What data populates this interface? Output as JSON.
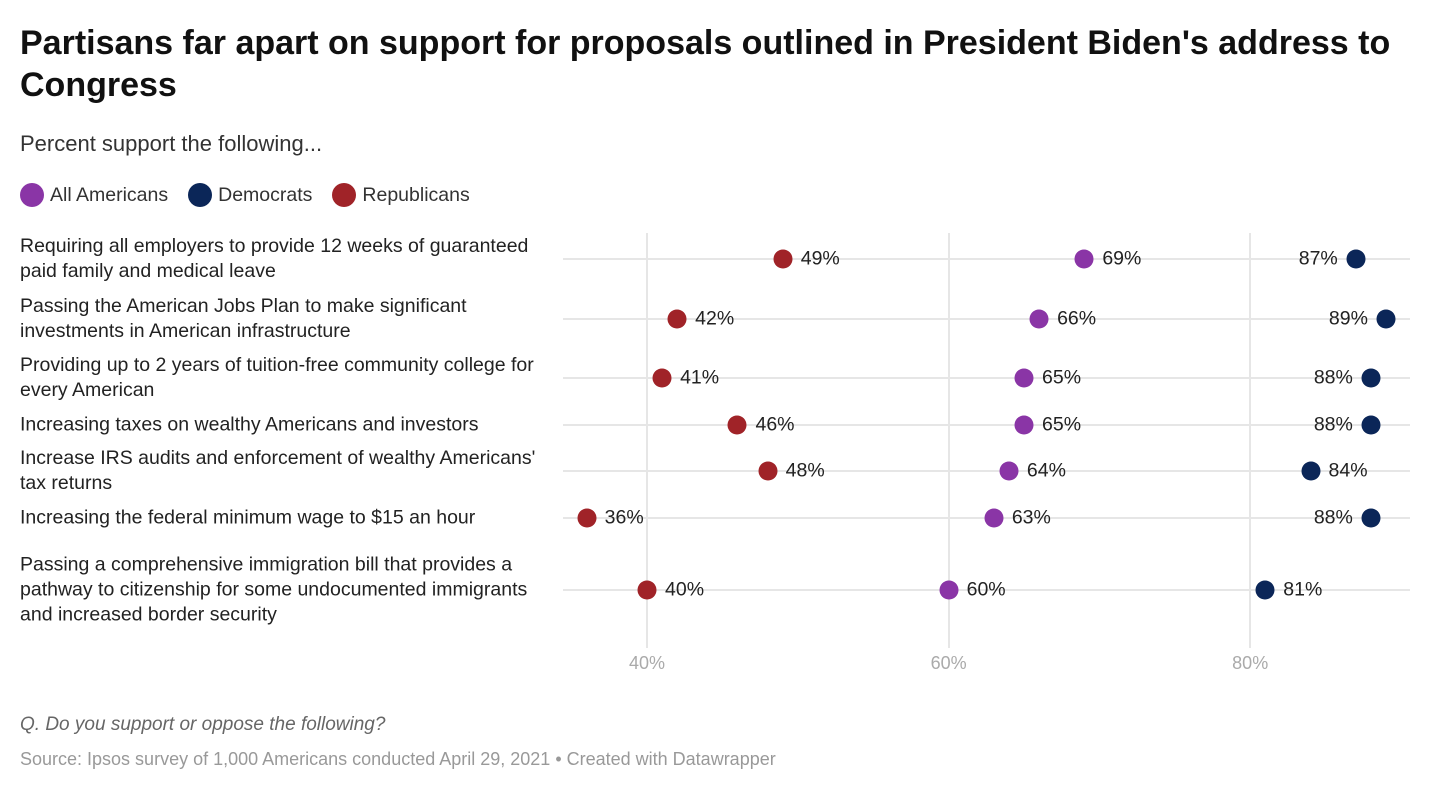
{
  "chart_data": {
    "type": "scatter",
    "title": "Partisans far apart on support for proposals outlined in President Biden's address to Congress",
    "subtitle": "Percent support the following...",
    "xlim": [
      34.4,
      90.6
    ],
    "xticks": [
      40,
      60,
      80
    ],
    "xtick_labels": [
      "40%",
      "60%",
      "80%"
    ],
    "legend_position": "top-left",
    "series": [
      {
        "name": "All Americans",
        "color": "#8a35a6"
      },
      {
        "name": "Democrats",
        "color": "#0b2658"
      },
      {
        "name": "Republicans",
        "color": "#a02328"
      }
    ],
    "categories": [
      "Requiring all employers to provide 12 weeks of guaranteed paid family and medical leave",
      "Passing the American Jobs Plan to make significant investments in American infrastructure",
      "Providing up to 2 years of tuition-free community college for every American",
      "Increasing taxes on wealthy Americans and investors",
      "Increase IRS audits and enforcement of wealthy Americans' tax returns",
      "Increasing the federal minimum wage to $15 an hour",
      "Passing a comprehensive immigration bill that provides a pathway to citizenship for some undocumented immigrants and increased border security"
    ],
    "values": {
      "All Americans": [
        69,
        66,
        65,
        65,
        64,
        63,
        60
      ],
      "Democrats": [
        87,
        89,
        88,
        88,
        84,
        88,
        81
      ],
      "Republicans": [
        49,
        42,
        41,
        46,
        48,
        36,
        40
      ]
    }
  },
  "footer": {
    "note": "Q. Do you support or oppose the following?",
    "source": "Source: Ipsos survey of 1,000 Americans conducted April 29, 2021 • Created with Datawrapper"
  }
}
